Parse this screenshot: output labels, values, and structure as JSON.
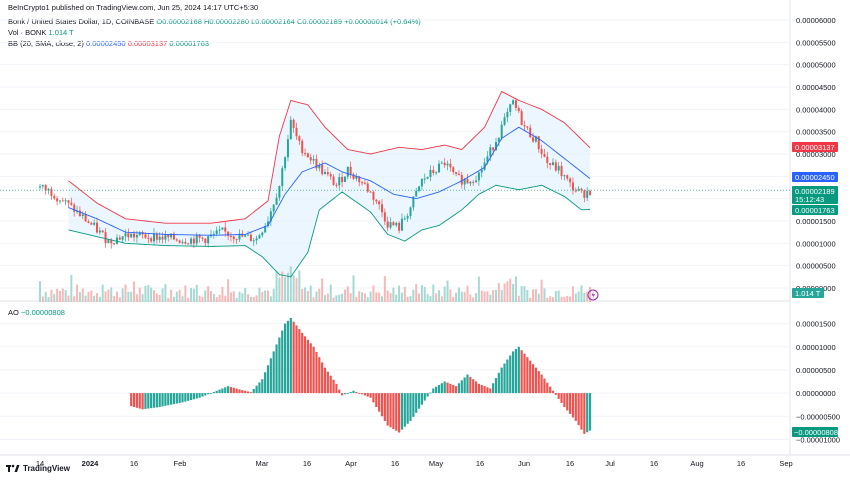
{
  "header": {
    "publisher": "BeInCrypto1 published on TradingView.com, Jun 25, 2024 14:17 UTC+5:30"
  },
  "legend": {
    "symbol": "Bonk / United States Dollar, 1D, COINBASE",
    "ohlc": "O0.00002168  H0.00002280  L0.00002164  C0.00002189  +0.00000014 (+0.64%)",
    "vol_label": "Vol · BONK",
    "vol_value": "1.014 T",
    "bb_label": "BB (20, SMA, close, 2)",
    "bb_basis": "0.00002450",
    "bb_upper": "0.00003137",
    "bb_lower": "0.00001763",
    "ao_label": "AO",
    "ao_value": "−0.00000808"
  },
  "footer": {
    "brand": "TradingView"
  },
  "colors": {
    "up": "#26a69a",
    "down": "#ef5350",
    "basis": "#2962ff",
    "upper": "#f23645",
    "lower": "#089981",
    "band_fill": "#e3f2fd"
  },
  "chart_data": [
    {
      "type": "candlestick",
      "title": "Bonk / United States Dollar, 1D, COINBASE",
      "y_ticks": [
        "0.00006000",
        "0.00005500",
        "0.00005000",
        "0.00004500",
        "0.00004000",
        "0.00003500",
        "0.00003000",
        "0.00002500",
        "0.00002000",
        "0.00001500",
        "0.00001000",
        "0.00000500",
        "0.00000000"
      ],
      "ylim": [
        0,
        6e-05
      ],
      "price_labels": [
        {
          "label": "0.00003137",
          "value": 3.137e-05,
          "color": "#f23645"
        },
        {
          "label": "0.00002450",
          "value": 2.45e-05,
          "color": "#2962ff"
        },
        {
          "label": "0.00002189",
          "value": 2.189e-05,
          "color": "#089981"
        },
        {
          "label": "15:12:43",
          "value": 1.98e-05,
          "color": "#089981"
        },
        {
          "label": "0.00001763",
          "value": 1.763e-05,
          "color": "#089981"
        }
      ],
      "vol_label": "1.014 T",
      "x_ticks": [
        "14",
        "2024",
        "16",
        "Feb",
        "Mar",
        "16",
        "Apr",
        "16",
        "May",
        "16",
        "Jun",
        "16",
        "Jul",
        "16",
        "Aug",
        "16",
        "Sep"
      ],
      "close_anchors": [
        [
          0,
          2.25e-05
        ],
        [
          4,
          2.15e-05
        ],
        [
          12,
          1.75e-05
        ],
        [
          20,
          1.3e-05
        ],
        [
          24,
          1.05e-05
        ],
        [
          30,
          1.18e-05
        ],
        [
          40,
          1.15e-05
        ],
        [
          50,
          1.08e-05
        ],
        [
          58,
          1.1e-05
        ],
        [
          64,
          1.25e-05
        ],
        [
          70,
          1.15e-05
        ],
        [
          76,
          1.1e-05
        ],
        [
          80,
          1.55e-05
        ],
        [
          84,
          2.3e-05
        ],
        [
          86,
          3e-05
        ],
        [
          88,
          3.7e-05
        ],
        [
          91,
          3.2e-05
        ],
        [
          95,
          2.9e-05
        ],
        [
          100,
          2.55e-05
        ],
        [
          104,
          2.3e-05
        ],
        [
          108,
          2.65e-05
        ],
        [
          114,
          2.3e-05
        ],
        [
          118,
          1.95e-05
        ],
        [
          122,
          1.45e-05
        ],
        [
          126,
          1.35e-05
        ],
        [
          130,
          1.8e-05
        ],
        [
          134,
          2.4e-05
        ],
        [
          138,
          2.6e-05
        ],
        [
          142,
          2.8e-05
        ],
        [
          146,
          2.45e-05
        ],
        [
          150,
          2.4e-05
        ],
        [
          154,
          2.55e-05
        ],
        [
          158,
          3.05e-05
        ],
        [
          162,
          3.6e-05
        ],
        [
          166,
          4.15e-05
        ],
        [
          170,
          3.6e-05
        ],
        [
          174,
          3.3e-05
        ],
        [
          178,
          2.8e-05
        ],
        [
          182,
          2.65e-05
        ],
        [
          186,
          2.3e-05
        ],
        [
          190,
          2.1e-05
        ],
        [
          193,
          2.18e-05
        ]
      ],
      "bb_upper_anchors": [
        [
          10,
          2.4e-05
        ],
        [
          20,
          1.9e-05
        ],
        [
          30,
          1.55e-05
        ],
        [
          44,
          1.45e-05
        ],
        [
          60,
          1.45e-05
        ],
        [
          72,
          1.55e-05
        ],
        [
          80,
          1.95e-05
        ],
        [
          84,
          3.4e-05
        ],
        [
          88,
          4.2e-05
        ],
        [
          94,
          4.1e-05
        ],
        [
          100,
          3.6e-05
        ],
        [
          108,
          3.1e-05
        ],
        [
          116,
          3e-05
        ],
        [
          126,
          3.15e-05
        ],
        [
          134,
          3.1e-05
        ],
        [
          142,
          3.2e-05
        ],
        [
          148,
          3.1e-05
        ],
        [
          156,
          3.6e-05
        ],
        [
          162,
          4.4e-05
        ],
        [
          168,
          4.2e-05
        ],
        [
          176,
          4e-05
        ],
        [
          184,
          3.7e-05
        ],
        [
          193,
          3.14e-05
        ]
      ],
      "bb_basis_anchors": [
        [
          10,
          1.8e-05
        ],
        [
          20,
          1.55e-05
        ],
        [
          30,
          1.25e-05
        ],
        [
          44,
          1.2e-05
        ],
        [
          60,
          1.18e-05
        ],
        [
          72,
          1.2e-05
        ],
        [
          80,
          1.4e-05
        ],
        [
          86,
          2.1e-05
        ],
        [
          92,
          2.6e-05
        ],
        [
          100,
          2.8e-05
        ],
        [
          106,
          2.6e-05
        ],
        [
          116,
          2.4e-05
        ],
        [
          124,
          2.1e-05
        ],
        [
          132,
          2e-05
        ],
        [
          140,
          2.15e-05
        ],
        [
          148,
          2.4e-05
        ],
        [
          156,
          2.7e-05
        ],
        [
          162,
          3.35e-05
        ],
        [
          168,
          3.6e-05
        ],
        [
          176,
          3.3e-05
        ],
        [
          184,
          2.9e-05
        ],
        [
          193,
          2.45e-05
        ]
      ],
      "bb_lower_anchors": [
        [
          10,
          1.3e-05
        ],
        [
          20,
          1.15e-05
        ],
        [
          30,
          1e-05
        ],
        [
          44,
          9.5e-06
        ],
        [
          60,
          9.3e-06
        ],
        [
          72,
          9.5e-06
        ],
        [
          78,
          7e-06
        ],
        [
          84,
          3e-06
        ],
        [
          88,
          2.5e-06
        ],
        [
          94,
          8e-06
        ],
        [
          98,
          1.75e-05
        ],
        [
          106,
          2.15e-05
        ],
        [
          116,
          1.7e-05
        ],
        [
          122,
          1.2e-05
        ],
        [
          128,
          1.05e-05
        ],
        [
          134,
          1.3e-05
        ],
        [
          140,
          1.4e-05
        ],
        [
          148,
          1.75e-05
        ],
        [
          154,
          2.1e-05
        ],
        [
          160,
          2.3e-05
        ],
        [
          168,
          2.2e-05
        ],
        [
          176,
          2.3e-05
        ],
        [
          184,
          2.05e-05
        ],
        [
          190,
          1.75e-05
        ],
        [
          193,
          1.76e-05
        ]
      ]
    },
    {
      "type": "bar",
      "title": "AO",
      "y_ticks": [
        "0.00001500",
        "0.00001000",
        "0.00000500",
        "0.00000000",
        "−0.00000500",
        "−0.00001000"
      ],
      "ylim": [
        -1.12e-05,
        1.75e-05
      ],
      "value_label": "−0.00000808",
      "ao_anchors": [
        [
          30,
          -2.5e-06
        ],
        [
          36,
          -3.5e-06
        ],
        [
          42,
          -3e-06
        ],
        [
          50,
          -2e-06
        ],
        [
          56,
          -1e-06
        ],
        [
          62,
          5e-07
        ],
        [
          66,
          1.5e-06
        ],
        [
          70,
          8e-07
        ],
        [
          74,
          2e-07
        ],
        [
          78,
          3e-06
        ],
        [
          82,
          9e-06
        ],
        [
          86,
          1.5e-05
        ],
        [
          88,
          1.62e-05
        ],
        [
          92,
          1.3e-05
        ],
        [
          96,
          1e-05
        ],
        [
          100,
          5.5e-06
        ],
        [
          104,
          2e-06
        ],
        [
          106,
          -5e-07
        ],
        [
          110,
          5e-07
        ],
        [
          116,
          -1e-06
        ],
        [
          122,
          -7e-06
        ],
        [
          126,
          -8.5e-06
        ],
        [
          130,
          -6e-06
        ],
        [
          134,
          -2.5e-06
        ],
        [
          138,
          1e-06
        ],
        [
          142,
          2.5e-06
        ],
        [
          146,
          1.5e-06
        ],
        [
          150,
          4e-06
        ],
        [
          154,
          2e-06
        ],
        [
          158,
          1e-06
        ],
        [
          162,
          5.5e-06
        ],
        [
          166,
          9e-06
        ],
        [
          168,
          1e-05
        ],
        [
          172,
          7e-06
        ],
        [
          176,
          4e-06
        ],
        [
          180,
          5e-07
        ],
        [
          184,
          -3e-06
        ],
        [
          188,
          -6e-06
        ],
        [
          191,
          -8.8e-06
        ],
        [
          193,
          -8.1e-06
        ]
      ]
    }
  ]
}
